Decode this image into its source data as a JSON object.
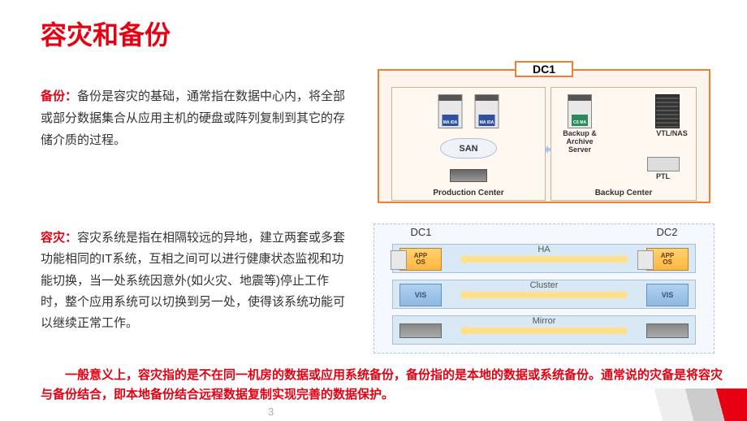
{
  "title": "容灾和备份",
  "backup": {
    "label": "备份：",
    "text": "备份是容灾的基础，通常指在数据中心内，将全部或部分数据集合从应用主机的硬盘或阵列复制到其它的存储介质的过程。"
  },
  "dr": {
    "label": "容灾：",
    "text": "容灾系统是指在相隔较远的异地，建立两套或多套功能相同的IT系统，互相之间可以进行健康状态监视和功能切换，当一处系统因意外(如火灾、地震等)停止工作时，整个应用系统可以切换到另一处，使得该系统功能可以继续正常工作。"
  },
  "footer": "　　一般意义上，容灾指的是不在同一机房的数据或应用系统备份，备份指的是本地的数据或系统备份。通常说的灾备是将容灾与备份结合，即本地备份结合远程数据复制实现完善的数据保护。",
  "page": "3",
  "diagram1": {
    "dc_label": "DC1",
    "prod_label": "Production Center",
    "backup_label": "Backup Center",
    "san": "SAN",
    "srv_tag": "MA\niDA",
    "backup_srv_tag": "CS\nMA",
    "backup_server": "Backup & Archive Server",
    "vtl": "VTL/NAS",
    "ptl": "PTL",
    "border_color": "#f08030",
    "bg_color": "#fdf4ee"
  },
  "diagram2": {
    "dc1": "DC1",
    "dc2": "DC2",
    "app": "APP",
    "os": "OS",
    "vis": "VIS",
    "layers": [
      {
        "label": "HA"
      },
      {
        "label": "Cluster"
      },
      {
        "label": "Mirror"
      }
    ],
    "layer_bg": "#d8e8f4",
    "arrow_color": "#ffe088"
  }
}
